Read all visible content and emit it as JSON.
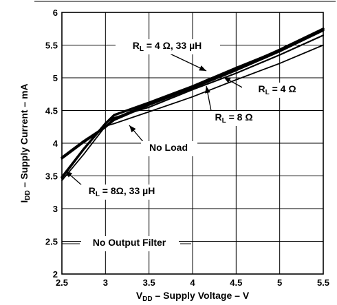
{
  "chart_data": {
    "type": "line",
    "title": "",
    "xlabel": {
      "main": "V",
      "sub": "DD",
      "rest": " – Supply Voltage – V"
    },
    "ylabel": {
      "main": "I",
      "sub": "DD",
      "rest": " – Supply Current – mA"
    },
    "xlim": [
      2.5,
      5.5
    ],
    "ylim": [
      2,
      6
    ],
    "x_ticks": [
      "2.5",
      "3",
      "3.5",
      "4",
      "4.5",
      "5",
      "5.5"
    ],
    "y_ticks": [
      "2",
      "2.5",
      "3",
      "3.5",
      "4",
      "4.5",
      "5",
      "5.5",
      "6"
    ],
    "grid": true,
    "series": [
      {
        "name": "RL = 4 Ω, 33 µH",
        "x": [
          2.5,
          2.75,
          3.0,
          3.1,
          3.5,
          4.0,
          4.5,
          5.0,
          5.5
        ],
        "y": [
          3.78,
          4.03,
          4.25,
          4.37,
          4.6,
          4.86,
          5.13,
          5.43,
          5.75
        ]
      },
      {
        "name": "RL = 4 Ω",
        "x": [
          2.5,
          2.75,
          3.0,
          3.1,
          3.5,
          4.0,
          4.5,
          5.0,
          5.5
        ],
        "y": [
          3.76,
          4.01,
          4.24,
          4.35,
          4.58,
          4.84,
          5.11,
          5.4,
          5.72
        ]
      },
      {
        "name": "RL = 8 Ω",
        "x": [
          2.5,
          2.75,
          3.0,
          3.1,
          3.5,
          4.0,
          4.5,
          5.0,
          5.5
        ],
        "y": [
          3.46,
          3.9,
          4.31,
          4.39,
          4.55,
          4.82,
          5.07,
          5.35,
          5.65
        ]
      },
      {
        "name": "RL = 8Ω, 33 µH",
        "x": [
          2.5,
          2.75,
          3.0,
          3.1,
          3.5,
          4.0,
          4.5,
          5.0,
          5.5
        ],
        "y": [
          3.48,
          3.91,
          4.3,
          4.43,
          4.62,
          4.87,
          5.15,
          5.42,
          5.73
        ]
      },
      {
        "name": "No Load",
        "x": [
          2.5,
          2.75,
          3.0,
          3.1,
          3.5,
          4.0,
          4.5,
          5.0,
          5.5
        ],
        "y": [
          3.43,
          3.83,
          4.26,
          4.3,
          4.48,
          4.71,
          4.97,
          5.22,
          5.5
        ]
      }
    ],
    "annotations": [
      {
        "main": "R",
        "sub": "L",
        "rest": " = 4 Ω, 33 µH"
      },
      {
        "main": "R",
        "sub": "L",
        "rest": " = 4 Ω"
      },
      {
        "main": "R",
        "sub": "L",
        "rest": " = 8 Ω"
      },
      {
        "main": "",
        "sub": "",
        "rest": "No Load"
      },
      {
        "main": "R",
        "sub": "L",
        "rest": " = 8Ω, 33 µH"
      },
      {
        "main": "",
        "sub": "",
        "rest": "No Output Filter"
      }
    ]
  }
}
